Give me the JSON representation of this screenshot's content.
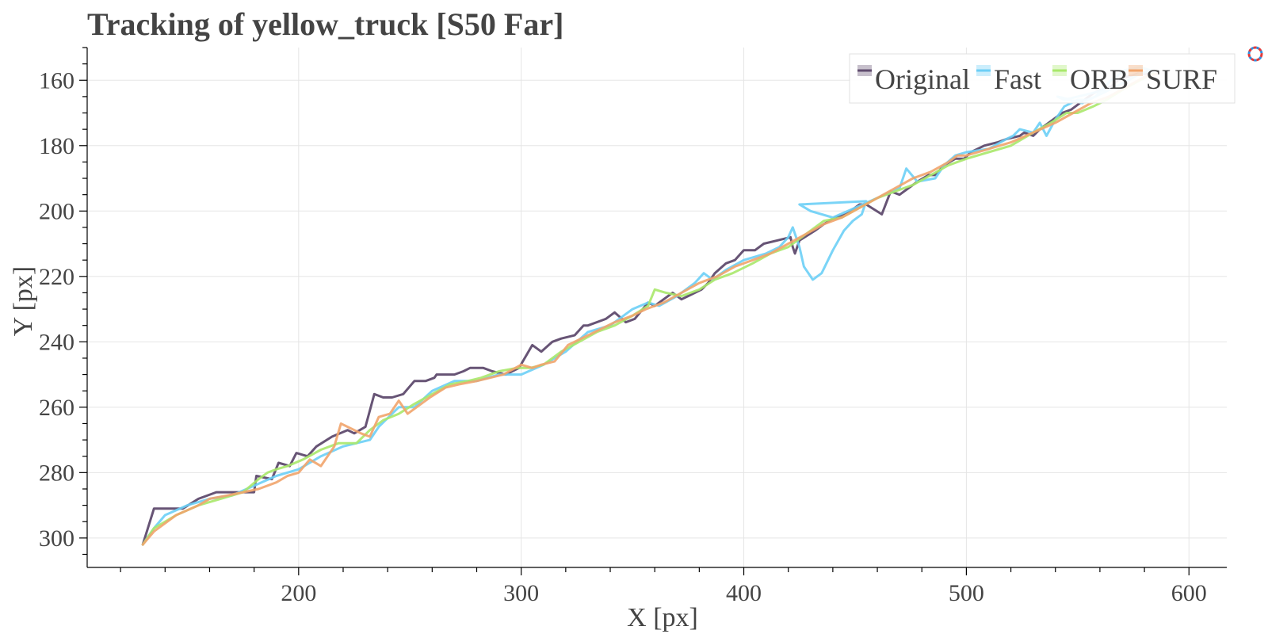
{
  "chart_data": {
    "type": "line",
    "title": "Tracking of yellow_truck [S50 Far]",
    "xlabel": "X [px]",
    "ylabel": "Y [px]",
    "xlim": [
      105,
      617
    ],
    "ylim": [
      150,
      309
    ],
    "y_inverted": true,
    "xticks": [
      200,
      300,
      400,
      500,
      600
    ],
    "yticks": [
      160,
      180,
      200,
      220,
      240,
      260,
      280,
      300
    ],
    "grid": true,
    "legend_position": "top-right",
    "series": [
      {
        "name": "Original",
        "color": "#5f4b6e",
        "x": [
          130,
          135,
          148,
          155,
          163,
          166,
          180,
          181,
          188,
          191,
          196,
          199,
          204,
          208,
          215,
          222,
          225,
          230,
          234,
          238,
          242,
          247,
          252,
          257,
          261,
          262,
          270,
          274,
          277,
          283,
          287,
          293,
          299,
          305,
          309,
          314,
          318,
          324,
          328,
          330,
          338,
          342,
          347,
          351,
          357,
          360,
          368,
          372,
          375,
          381,
          384,
          387,
          392,
          396,
          400,
          405,
          409,
          415,
          421,
          422,
          423,
          425,
          432,
          436,
          441,
          446,
          452,
          455,
          462,
          466,
          470,
          474,
          478,
          483,
          486,
          490,
          495,
          499,
          502,
          508,
          514,
          518,
          524,
          526,
          530,
          533,
          537,
          539,
          543,
          547,
          549,
          551,
          553,
          557,
          560,
          565,
          568,
          572,
          577,
          583
        ],
        "y": [
          302,
          291,
          291,
          288,
          286,
          286,
          286,
          281,
          282,
          277,
          278,
          274,
          275,
          272,
          269,
          267,
          268,
          266,
          256,
          257,
          257,
          256,
          252,
          252,
          251,
          250,
          250,
          249,
          248,
          248,
          249,
          250,
          248,
          241,
          243,
          240,
          239,
          238,
          235,
          235,
          233,
          231,
          234,
          233,
          228,
          229,
          225,
          227,
          226,
          224,
          222,
          219,
          216,
          215,
          212,
          212,
          210,
          209,
          208,
          211,
          213,
          209,
          206,
          204,
          202,
          201,
          198,
          198,
          201,
          194,
          195,
          193,
          191,
          189,
          189,
          186,
          184,
          184,
          182,
          180,
          179,
          178,
          177,
          176,
          177,
          175,
          173,
          172,
          170,
          169,
          168,
          167,
          166,
          164,
          163,
          162,
          160,
          159,
          158,
          158
        ]
      },
      {
        "name": "Fast",
        "color": "#6ccff6",
        "x": [
          130,
          135,
          140,
          150,
          160,
          170,
          180,
          190,
          200,
          210,
          220,
          232,
          236,
          245,
          252,
          260,
          270,
          280,
          290,
          300,
          310,
          320,
          330,
          340,
          350,
          357,
          362,
          370,
          378,
          382,
          386,
          392,
          400,
          410,
          416,
          420,
          422,
          425,
          427,
          431,
          435,
          440,
          445,
          449,
          453,
          455,
          425,
          430,
          440,
          450,
          460,
          470,
          473,
          478,
          486,
          490,
          495,
          500,
          510,
          518,
          521,
          524,
          530,
          533,
          536,
          540,
          544,
          550,
          554,
          558,
          564,
          570,
          578,
          583,
          578,
          571,
          565,
          558,
          552,
          547,
          541,
          544,
          550,
          556,
          562
        ],
        "y": [
          302,
          297,
          293,
          290,
          288,
          287,
          284,
          281,
          279,
          275,
          272,
          270,
          266,
          260,
          260,
          255,
          252,
          252,
          250,
          250,
          247,
          243,
          237,
          235,
          230,
          228,
          229,
          226,
          222,
          219,
          221,
          218,
          215,
          213,
          211,
          208,
          205,
          211,
          217,
          221,
          219,
          212,
          206,
          203,
          201,
          197,
          198,
          200,
          202,
          199,
          196,
          193,
          187,
          191,
          190,
          186,
          183,
          182,
          181,
          178,
          177,
          175,
          176,
          173,
          177,
          172,
          168,
          166,
          166,
          165,
          163,
          161,
          158,
          157,
          156,
          157,
          160,
          165,
          167,
          166,
          165,
          166,
          165,
          164,
          163
        ]
      },
      {
        "name": "ORB",
        "color": "#a8e86a",
        "x": [
          130,
          135,
          145,
          155,
          165,
          175,
          182,
          186,
          190,
          195,
          202,
          210,
          218,
          226,
          232,
          238,
          245,
          252,
          260,
          268,
          276,
          282,
          290,
          298,
          304,
          310,
          318,
          326,
          334,
          342,
          350,
          357,
          360,
          365,
          372,
          380,
          387,
          395,
          404,
          412,
          420,
          428,
          436,
          444,
          452,
          460,
          468,
          476,
          484,
          492,
          500,
          510,
          520,
          530,
          538,
          545,
          550,
          557,
          563,
          570,
          578,
          584
        ],
        "y": [
          302,
          297,
          293,
          290,
          288,
          286,
          282,
          280,
          279,
          278,
          276,
          273,
          271,
          271,
          267,
          264,
          262,
          259,
          256,
          253,
          252,
          251,
          249,
          248,
          248,
          247,
          243,
          240,
          237,
          235,
          232,
          229,
          224,
          225,
          226,
          224,
          221,
          219,
          216,
          213,
          211,
          207,
          203,
          202,
          199,
          196,
          194,
          192,
          189,
          186,
          184,
          182,
          180,
          176,
          173,
          170,
          170,
          168,
          166,
          163,
          160,
          158
        ]
      },
      {
        "name": "SURF",
        "color": "#f1a46b",
        "x": [
          130,
          135,
          145,
          155,
          160,
          168,
          175,
          182,
          190,
          195,
          200,
          205,
          210,
          216,
          219,
          228,
          232,
          236,
          241,
          245,
          249,
          253,
          259,
          266,
          272,
          280,
          286,
          292,
          300,
          305,
          309,
          315,
          321,
          330,
          336,
          342,
          350,
          356,
          364,
          372,
          380,
          388,
          396,
          404,
          412,
          420,
          428,
          436,
          444,
          452,
          460,
          468,
          476,
          484,
          492,
          496,
          500,
          510,
          520,
          530,
          540,
          548,
          556,
          564,
          572,
          580,
          586
        ],
        "y": [
          302,
          298,
          293,
          290,
          288,
          287,
          286,
          285,
          283,
          281,
          280,
          276,
          278,
          272,
          265,
          268,
          269,
          263,
          262,
          258,
          262,
          260,
          257,
          254,
          253,
          252,
          251,
          250,
          247,
          248,
          247,
          246,
          241,
          238,
          236,
          234,
          232,
          230,
          228,
          225,
          222,
          220,
          217,
          215,
          213,
          210,
          207,
          204,
          202,
          199,
          196,
          193,
          190,
          188,
          185,
          183,
          183,
          181,
          179,
          176,
          173,
          170,
          167,
          165,
          162,
          159,
          158
        ]
      }
    ]
  }
}
